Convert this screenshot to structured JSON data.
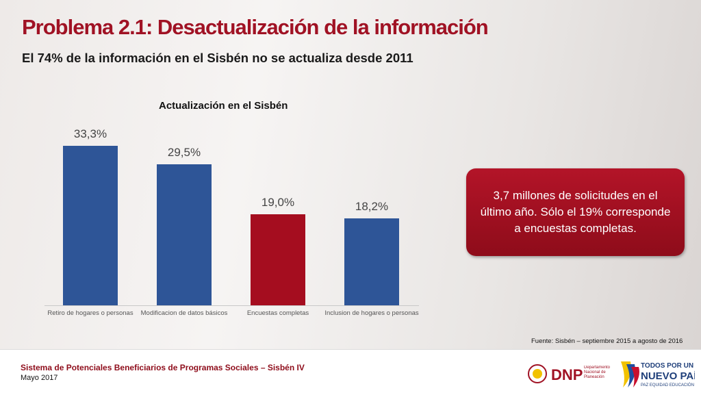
{
  "slide": {
    "title": "Problema 2.1: Desactualización de la información",
    "subtitle": "El 74% de la información en el Sisbén no se actualiza desde 2011",
    "callout": "3,7 millones de solicitudes en el último año. Sólo el 19% corresponde a encuestas completas.",
    "source": "Fuente: Sisbén – septiembre 2015 a agosto de 2016",
    "footer": "Sistema de Potenciales Beneficiarios de Programas Sociales – Sisbén IV",
    "date": "Mayo 2017",
    "logo_dnp": "DNP",
    "logo_dnp_sub": "Departamento Nacional de Planeación",
    "logo_gov": "TODOS POR UN",
    "logo_gov2": "NUEVO PAÍS",
    "logo_gov3": "PAZ EQUIDAD EDUCACIÓN"
  },
  "chart_data": {
    "type": "bar",
    "title": "Actualización en el Sisbén",
    "categories": [
      "Retiro de hogares o personas",
      "Modificacion de datos básicos",
      "Encuestas completas",
      "Inclusion de hogares o personas"
    ],
    "values": [
      33.3,
      29.5,
      19.0,
      18.2
    ],
    "value_labels": [
      "33,3%",
      "29,5%",
      "19,0%",
      "18,2%"
    ],
    "colors": [
      "#2e5597",
      "#2e5597",
      "#a50d1f",
      "#2e5597"
    ]
  }
}
